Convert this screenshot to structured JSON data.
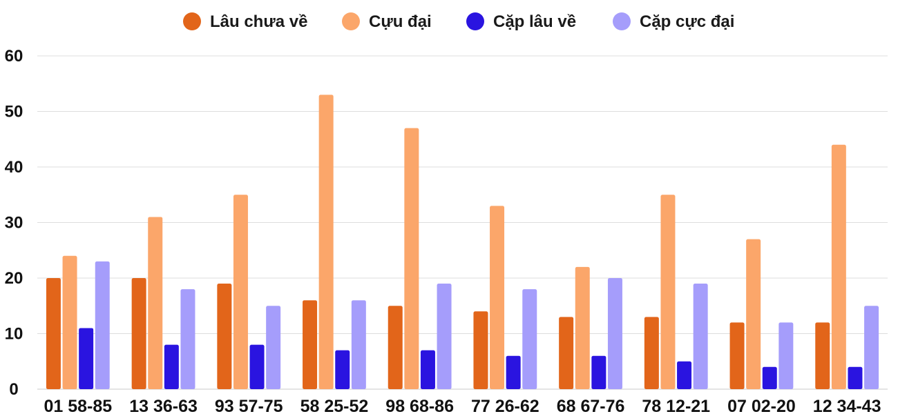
{
  "chart_data": {
    "type": "bar",
    "categories": [
      "01 58-85",
      "13 36-63",
      "93 57-75",
      "58 25-52",
      "98 68-86",
      "77 26-62",
      "68 67-76",
      "78 12-21",
      "07 02-20",
      "12 34-43"
    ],
    "series": [
      {
        "name": "Lâu chưa về",
        "color": "#e2651a",
        "values": [
          20,
          20,
          19,
          16,
          15,
          14,
          13,
          13,
          12,
          12
        ]
      },
      {
        "name": "Cựu đại",
        "color": "#fba66a",
        "values": [
          24,
          31,
          35,
          53,
          47,
          33,
          22,
          35,
          27,
          44
        ]
      },
      {
        "name": "Cặp lâu về",
        "color": "#2a14e0",
        "values": [
          11,
          8,
          8,
          7,
          7,
          6,
          6,
          5,
          4,
          4
        ]
      },
      {
        "name": "Cặp cực đại",
        "color": "#a59dfb",
        "values": [
          23,
          18,
          15,
          16,
          19,
          18,
          20,
          19,
          12,
          15
        ]
      }
    ],
    "yticks": [
      0,
      10,
      20,
      30,
      40,
      50,
      60
    ],
    "ylim": [
      0,
      60
    ],
    "grid": true,
    "legend": "top-center"
  }
}
